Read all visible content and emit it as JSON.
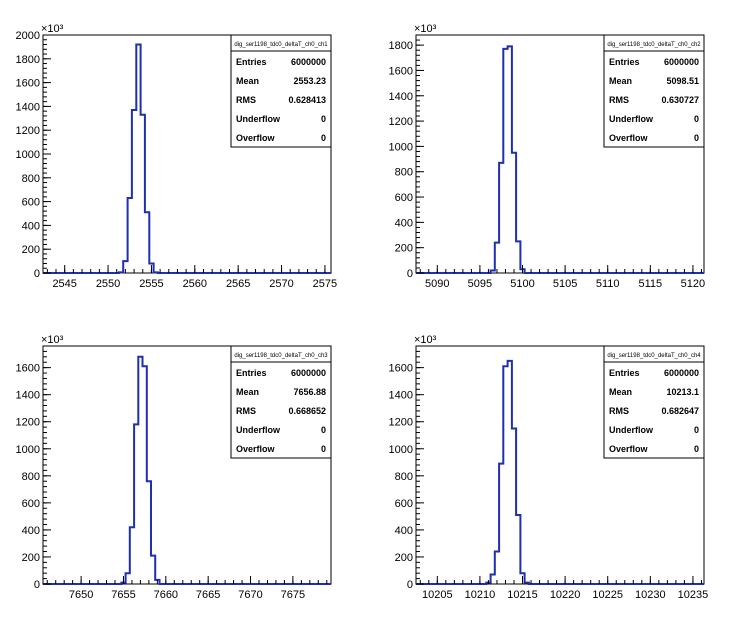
{
  "chart_data": [
    {
      "type": "bar",
      "histogram_name": "dig_ser1198_tdc0_deltaT_ch0_ch1",
      "y_multiplier_label": "×10³",
      "xlim": [
        2542.5,
        2575.7
      ],
      "x_ticks": [
        2545,
        2550,
        2555,
        2560,
        2565,
        2570,
        2575
      ],
      "ylim": [
        0,
        2000
      ],
      "y_ticks": [
        0,
        200,
        400,
        600,
        800,
        1000,
        1200,
        1400,
        1600,
        1800,
        2000
      ],
      "bin_width": 0.5,
      "bins": [
        {
          "x": 2551.5,
          "y": 5
        },
        {
          "x": 2552.0,
          "y": 100
        },
        {
          "x": 2552.5,
          "y": 630
        },
        {
          "x": 2553.0,
          "y": 1370
        },
        {
          "x": 2553.5,
          "y": 1920
        },
        {
          "x": 2554.0,
          "y": 1330
        },
        {
          "x": 2554.5,
          "y": 510
        },
        {
          "x": 2555.0,
          "y": 80
        },
        {
          "x": 2555.5,
          "y": 5
        }
      ],
      "stats": {
        "title": "dig_ser1198_tdc0_deltaT_ch0_ch1",
        "rows": [
          {
            "label": "Entries",
            "value": "6000000"
          },
          {
            "label": "Mean",
            "value": "2553.23"
          },
          {
            "label": "RMS",
            "value": "0.628413"
          },
          {
            "label": "Underflow",
            "value": "0"
          },
          {
            "label": "Overflow",
            "value": "0"
          }
        ]
      }
    },
    {
      "type": "bar",
      "histogram_name": "dig_ser1198_tdc0_deltaT_ch0_ch2",
      "y_multiplier_label": "×10³",
      "xlim": [
        5087.5,
        5121.3
      ],
      "x_ticks": [
        5090,
        5095,
        5100,
        5105,
        5110,
        5115,
        5120
      ],
      "ylim": [
        0,
        1880
      ],
      "y_ticks": [
        0,
        200,
        400,
        600,
        800,
        1000,
        1200,
        1400,
        1600,
        1800
      ],
      "bin_width": 0.5,
      "bins": [
        {
          "x": 5096.5,
          "y": 20
        },
        {
          "x": 5097.0,
          "y": 240
        },
        {
          "x": 5097.5,
          "y": 870
        },
        {
          "x": 5098.0,
          "y": 1770
        },
        {
          "x": 5098.5,
          "y": 1790
        },
        {
          "x": 5099.0,
          "y": 950
        },
        {
          "x": 5099.5,
          "y": 250
        },
        {
          "x": 5100.0,
          "y": 30
        }
      ],
      "stats": {
        "title": "dig_ser1198_tdc0_deltaT_ch0_ch2",
        "rows": [
          {
            "label": "Entries",
            "value": "6000000"
          },
          {
            "label": "Mean",
            "value": "5098.51"
          },
          {
            "label": "RMS",
            "value": "0.630727"
          },
          {
            "label": "Underflow",
            "value": "0"
          },
          {
            "label": "Overflow",
            "value": "0"
          }
        ]
      }
    },
    {
      "type": "bar",
      "histogram_name": "dig_ser1198_tdc0_deltaT_ch0_ch3",
      "y_multiplier_label": "×10³",
      "xlim": [
        7645.5,
        7679.5
      ],
      "x_ticks": [
        7650,
        7655,
        7660,
        7665,
        7670,
        7675
      ],
      "ylim": [
        0,
        1760
      ],
      "y_ticks": [
        0,
        200,
        400,
        600,
        800,
        1000,
        1200,
        1400,
        1600
      ],
      "bin_width": 0.5,
      "bins": [
        {
          "x": 7655.0,
          "y": 10
        },
        {
          "x": 7655.5,
          "y": 80
        },
        {
          "x": 7656.0,
          "y": 420
        },
        {
          "x": 7656.5,
          "y": 1180
        },
        {
          "x": 7657.0,
          "y": 1680
        },
        {
          "x": 7657.5,
          "y": 1610
        },
        {
          "x": 7658.0,
          "y": 760
        },
        {
          "x": 7658.5,
          "y": 210
        },
        {
          "x": 7659.0,
          "y": 30
        }
      ],
      "stats": {
        "title": "dig_ser1198_tdc0_deltaT_ch0_ch3",
        "rows": [
          {
            "label": "Entries",
            "value": "6000000"
          },
          {
            "label": "Mean",
            "value": "7656.88"
          },
          {
            "label": "RMS",
            "value": "0.668652"
          },
          {
            "label": "Underflow",
            "value": "0"
          },
          {
            "label": "Overflow",
            "value": "0"
          }
        ]
      }
    },
    {
      "type": "bar",
      "histogram_name": "dig_ser1198_tdc0_deltaT_ch0_ch4",
      "y_multiplier_label": "×10³",
      "xlim": [
        10202.5,
        10236.3
      ],
      "x_ticks": [
        10205,
        10210,
        10215,
        10220,
        10225,
        10230,
        10235
      ],
      "ylim": [
        0,
        1760
      ],
      "y_ticks": [
        0,
        200,
        400,
        600,
        800,
        1000,
        1200,
        1400,
        1600
      ],
      "bin_width": 0.5,
      "bins": [
        {
          "x": 10211.0,
          "y": 10
        },
        {
          "x": 10211.5,
          "y": 70
        },
        {
          "x": 10212.0,
          "y": 240
        },
        {
          "x": 10212.5,
          "y": 890
        },
        {
          "x": 10213.0,
          "y": 1610
        },
        {
          "x": 10213.5,
          "y": 1650
        },
        {
          "x": 10214.0,
          "y": 1150
        },
        {
          "x": 10214.5,
          "y": 510
        },
        {
          "x": 10215.0,
          "y": 80
        },
        {
          "x": 10215.5,
          "y": 10
        }
      ],
      "stats": {
        "title": "dig_ser1198_tdc0_deltaT_ch0_ch4",
        "rows": [
          {
            "label": "Entries",
            "value": "6000000"
          },
          {
            "label": "Mean",
            "value": "10213.1"
          },
          {
            "label": "RMS",
            "value": "0.682647"
          },
          {
            "label": "Underflow",
            "value": "0"
          },
          {
            "label": "Overflow",
            "value": "0"
          }
        ]
      }
    }
  ],
  "colors": {
    "histogram_line": "#1f2fb0",
    "axis": "#000000",
    "background": "#ffffff"
  }
}
